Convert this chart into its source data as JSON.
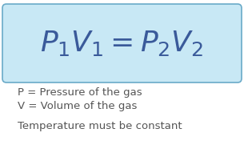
{
  "bg_color": "#ffffff",
  "box_bg_color": "#c8e8f5",
  "box_border_color": "#6aaac8",
  "formula": "$\\mathit{P}_1\\mathit{V}_1 = \\mathit{P}_2\\mathit{V}_2$",
  "formula_color": "#3a5a9a",
  "formula_fontsize": 26,
  "line1": "P = Pressure of the gas",
  "line2": "V = Volume of the gas",
  "line3": "Temperature must be constant",
  "text_color": "#555555",
  "text_fontsize": 9.5,
  "fig_width": 3.05,
  "fig_height": 2.06,
  "dpi": 100
}
